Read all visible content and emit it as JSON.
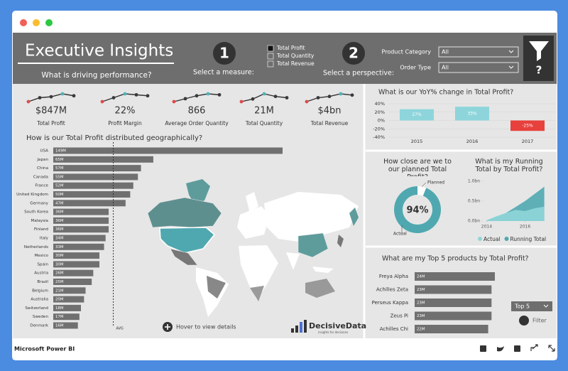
{
  "window": {
    "app_name": "Microsoft Power BI"
  },
  "header": {
    "title": "Executive Insights",
    "subtitle": "What is driving performance?",
    "step1": "1",
    "step1_label": "Select a measure:",
    "measures": [
      "Total Profit",
      "Total Quantity",
      "Total Revenue"
    ],
    "selected_measure": 0,
    "step2": "2",
    "step2_label": "Select a perspective:",
    "filters": [
      {
        "label": "Product Category",
        "value": "All"
      },
      {
        "label": "Order Type",
        "value": "All"
      }
    ],
    "help": "?"
  },
  "kpi_marker_colors": [
    "#e04848",
    "#4fb3b8",
    "#3a3a3a"
  ],
  "kpis": [
    {
      "value": "$847M",
      "label": "Total Profit",
      "trend": [
        1,
        3,
        3.5,
        5,
        4
      ]
    },
    {
      "value": "22%",
      "label": "Profit Margin",
      "trend": [
        1,
        3,
        5,
        4.5,
        4
      ]
    },
    {
      "value": "866",
      "label": "Average Order Quantity",
      "trend": [
        1,
        2.5,
        4,
        5,
        4.5
      ]
    },
    {
      "value": "21M",
      "label": "Total Quantity",
      "trend": [
        2,
        3,
        5,
        4,
        3.5
      ]
    },
    {
      "value": "$4bn",
      "label": "Total Revenue",
      "trend": [
        2,
        3.5,
        4,
        5,
        4.5
      ]
    }
  ],
  "chart_data": [
    {
      "type": "bar",
      "orientation": "horizontal",
      "title": "How is our Total Profit distributed geographically?",
      "categories": [
        "USA",
        "Japan",
        "China",
        "Canada",
        "France",
        "United Kingdom",
        "Germany",
        "South Korea",
        "Malaysia",
        "Finland",
        "Italy",
        "Netherlands",
        "Mexico",
        "Spain",
        "Austria",
        "Brazil",
        "Belgium",
        "Australia",
        "Switzerland",
        "Sweden",
        "Denmark"
      ],
      "values": [
        149,
        65,
        57,
        55,
        52,
        50,
        47,
        36,
        36,
        36,
        34,
        33,
        30,
        30,
        26,
        25,
        21,
        20,
        18,
        17,
        16
      ],
      "value_labels": [
        "149M",
        "65M",
        "57M",
        "55M",
        "52M",
        "50M",
        "47M",
        "36M",
        "36M",
        "36M",
        "34M",
        "33M",
        "30M",
        "30M",
        "26M",
        "25M",
        "21M",
        "20M",
        "18M",
        "17M",
        "16M"
      ],
      "color": "#707070",
      "average": 39,
      "average_label": "AVG"
    },
    {
      "type": "bar",
      "title": "What is our YoY% change in Total Profit?",
      "categories": [
        "2015",
        "2016",
        "2017"
      ],
      "values": [
        27,
        33,
        -25
      ],
      "value_labels": [
        "27%",
        "33%",
        "-25%"
      ],
      "color": "#8dd5db",
      "negative_color": "#e8403c",
      "ylim": [
        -40,
        40
      ],
      "yticks": [
        {
          "value": 40,
          "label": "40%"
        },
        {
          "value": 20,
          "label": "20%"
        },
        {
          "value": 0,
          "label": "0%"
        },
        {
          "value": -20,
          "label": "-20%"
        },
        {
          "value": -40,
          "label": "-40%"
        }
      ],
      "grid": true
    },
    {
      "type": "donut",
      "title": "How close are we to our planned Total Profit?",
      "categories": [
        "Actual",
        "Planned"
      ],
      "values": [
        94,
        6
      ],
      "colors": [
        "#4fa8b0",
        "#ffffff"
      ],
      "center_label": "94%"
    },
    {
      "type": "area",
      "title": "What is my Running Total by Total Profit?",
      "x": [
        2014,
        2014.5,
        2015,
        2015.5,
        2016,
        2016.5,
        2017
      ],
      "series": [
        {
          "name": "Actual",
          "color": "#8fd6d8",
          "values": [
            0.02,
            0.12,
            0.2,
            0.28,
            0.25,
            0.32,
            0.36
          ]
        },
        {
          "name": "Running Total",
          "color": "#4fa8b0",
          "values": [
            0.02,
            0.1,
            0.2,
            0.35,
            0.5,
            0.68,
            0.86
          ]
        }
      ],
      "xlim": [
        2013.8,
        2017.2
      ],
      "xticks": [
        2014,
        2016
      ],
      "ylim": [
        0,
        1.05
      ],
      "yticks": [
        {
          "value": 0,
          "label": "0.0bn"
        },
        {
          "value": 0.5,
          "label": "0.5bn"
        },
        {
          "value": 1,
          "label": "1.0bn"
        }
      ],
      "legend": "bottom"
    },
    {
      "type": "bar",
      "orientation": "horizontal",
      "title": "What are my Top 5 products by Total Profit?",
      "categories": [
        "Freya Alpha",
        "Achilles Zeta",
        "Perseus Kappa",
        "Zeus Pi",
        "Achilles Chi"
      ],
      "values": [
        24,
        23,
        23,
        23,
        22
      ],
      "value_labels": [
        "24M",
        "23M",
        "23M",
        "23M",
        "22M"
      ],
      "color": "#707070"
    }
  ],
  "map": {
    "hint": "Hover to view details"
  },
  "logo": {
    "name": "DecisiveData",
    "tagline": "insights for decisions"
  },
  "slicer": {
    "value": "Top 5",
    "filter_label": "Filter"
  }
}
